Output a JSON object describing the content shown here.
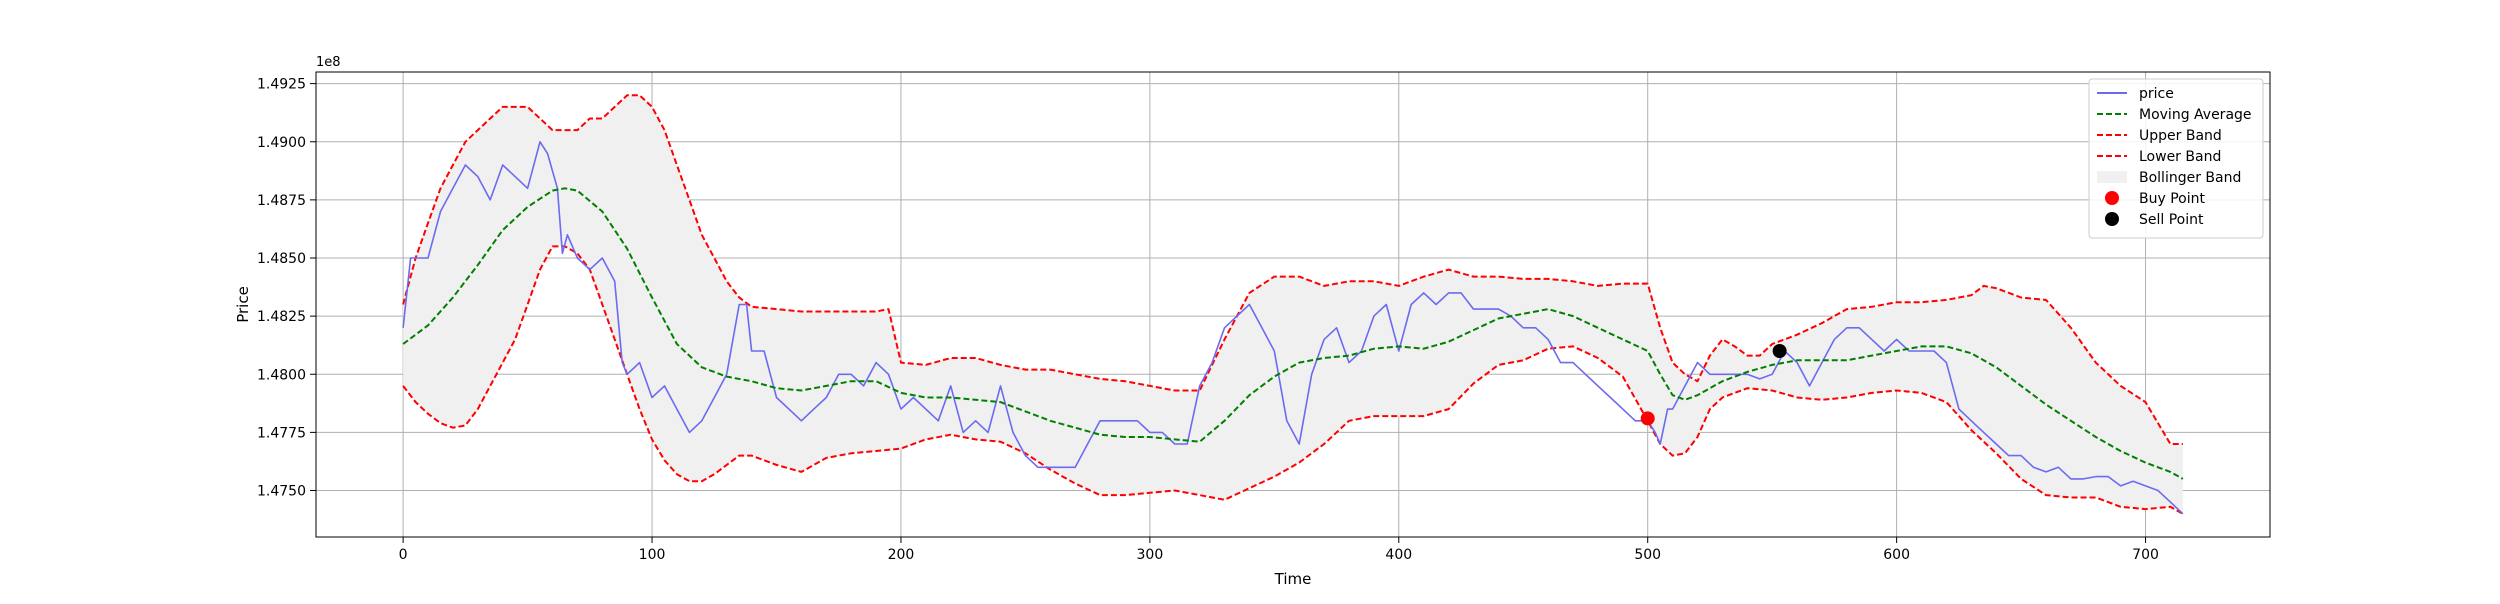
{
  "chart_data": {
    "type": "line",
    "title": "",
    "xlabel": "Time",
    "ylabel": "Price",
    "y_offset_text": "1e8",
    "xlim": [
      -35,
      750
    ],
    "ylim": [
      147300000,
      149300000
    ],
    "xticks": [
      0,
      100,
      200,
      300,
      400,
      500,
      600,
      700
    ],
    "yticks": [
      147500000,
      147750000,
      148000000,
      148250000,
      148500000,
      148750000,
      149000000,
      149250000
    ],
    "ytick_labels": [
      "1.4750",
      "1.4775",
      "1.4800",
      "1.4825",
      "1.4850",
      "1.4875",
      "1.4900",
      "1.4925"
    ],
    "grid": true,
    "legend_position": "top-right",
    "legend": [
      "price",
      "Moving Average",
      "Upper Band",
      "Lower Band",
      "Bollinger Band",
      "Buy Point",
      "Sell Point"
    ],
    "colors": {
      "price": "#6b6bf0",
      "moving_average": "#008000",
      "bands": "#ff0000",
      "fill": "#f0f0f0",
      "buy": "#ff0000",
      "sell": "#000000"
    },
    "series": [
      {
        "name": "price",
        "x": [
          0,
          3,
          10,
          15,
          20,
          25,
          30,
          35,
          40,
          45,
          50,
          55,
          58,
          62,
          64,
          66,
          70,
          75,
          80,
          85,
          88,
          90,
          95,
          100,
          105,
          110,
          115,
          120,
          125,
          130,
          135,
          138,
          140,
          145,
          150,
          155,
          160,
          165,
          170,
          175,
          180,
          185,
          190,
          195,
          200,
          205,
          210,
          215,
          220,
          225,
          230,
          235,
          240,
          245,
          250,
          255,
          260,
          265,
          270,
          275,
          280,
          285,
          290,
          295,
          300,
          305,
          310,
          315,
          320,
          325,
          330,
          335,
          340,
          345,
          350,
          355,
          360,
          365,
          370,
          375,
          380,
          385,
          390,
          395,
          400,
          405,
          410,
          415,
          420,
          425,
          430,
          435,
          440,
          445,
          450,
          455,
          460,
          465,
          470,
          475,
          480,
          485,
          490,
          495,
          500,
          503,
          505,
          508,
          510,
          515,
          520,
          525,
          530,
          535,
          540,
          545,
          550,
          555,
          560,
          565,
          570,
          575,
          580,
          585,
          590,
          595,
          600,
          605,
          610,
          615,
          620,
          625,
          630,
          635,
          640,
          645,
          650,
          655,
          660,
          665,
          670,
          675,
          680,
          685,
          690,
          695,
          700,
          705,
          710,
          715
        ],
        "values": [
          148200000,
          148500000,
          148500000,
          148700000,
          148800000,
          148900000,
          148850000,
          148750000,
          148900000,
          148850000,
          148800000,
          149000000,
          148950000,
          148800000,
          148520000,
          148600000,
          148500000,
          148450000,
          148500000,
          148400000,
          148050000,
          148000000,
          148050000,
          147900000,
          147950000,
          147850000,
          147750000,
          147800000,
          147900000,
          148000000,
          148300000,
          148300000,
          148100000,
          148100000,
          147900000,
          147850000,
          147800000,
          147850000,
          147900000,
          148000000,
          148000000,
          147950000,
          148050000,
          148000000,
          147850000,
          147900000,
          147850000,
          147800000,
          147950000,
          147750000,
          147800000,
          147750000,
          147950000,
          147750000,
          147650000,
          147600000,
          147600000,
          147600000,
          147600000,
          147700000,
          147800000,
          147800000,
          147800000,
          147800000,
          147750000,
          147750000,
          147700000,
          147700000,
          147950000,
          148050000,
          148200000,
          148250000,
          148300000,
          148200000,
          148100000,
          147800000,
          147700000,
          148000000,
          148150000,
          148200000,
          148050000,
          148100000,
          148250000,
          148300000,
          148100000,
          148300000,
          148350000,
          148300000,
          148350000,
          148350000,
          148280000,
          148280000,
          148280000,
          148250000,
          148200000,
          148200000,
          148150000,
          148050000,
          148050000,
          148000000,
          147950000,
          147900000,
          147850000,
          147800000,
          147800000,
          147750000,
          147700000,
          147850000,
          147850000,
          147950000,
          148050000,
          148000000,
          148000000,
          148000000,
          148000000,
          147980000,
          148000000,
          148100000,
          148050000,
          147950000,
          148050000,
          148150000,
          148200000,
          148200000,
          148150000,
          148100000,
          148150000,
          148100000,
          148100000,
          148100000,
          148050000,
          147850000,
          147800000,
          147750000,
          147700000,
          147650000,
          147650000,
          147600000,
          147580000,
          147600000,
          147550000,
          147550000,
          147560000,
          147560000,
          147520000,
          147540000,
          147520000,
          147500000,
          147450000,
          147400000
        ]
      },
      {
        "name": "Moving Average",
        "x": [
          0,
          10,
          20,
          30,
          40,
          50,
          60,
          65,
          70,
          80,
          90,
          100,
          110,
          120,
          130,
          140,
          150,
          160,
          170,
          180,
          190,
          200,
          210,
          220,
          230,
          240,
          250,
          260,
          270,
          280,
          290,
          300,
          310,
          320,
          330,
          340,
          350,
          360,
          370,
          380,
          390,
          400,
          410,
          420,
          430,
          440,
          450,
          460,
          470,
          480,
          490,
          500,
          505,
          510,
          515,
          520,
          530,
          540,
          550,
          560,
          570,
          580,
          590,
          600,
          610,
          620,
          630,
          640,
          650,
          660,
          670,
          680,
          690,
          700,
          710,
          715
        ],
        "values": [
          148130000,
          148210000,
          148330000,
          148470000,
          148620000,
          148720000,
          148790000,
          148800000,
          148790000,
          148700000,
          148540000,
          148330000,
          148130000,
          148030000,
          147990000,
          147970000,
          147940000,
          147930000,
          147950000,
          147970000,
          147970000,
          147920000,
          147900000,
          147900000,
          147890000,
          147880000,
          147840000,
          147800000,
          147770000,
          147740000,
          147730000,
          147730000,
          147720000,
          147710000,
          147800000,
          147910000,
          147990000,
          148050000,
          148070000,
          148080000,
          148110000,
          148120000,
          148110000,
          148140000,
          148190000,
          148240000,
          148260000,
          148280000,
          148250000,
          148200000,
          148150000,
          148100000,
          148000000,
          147910000,
          147890000,
          147910000,
          147970000,
          148010000,
          148040000,
          148060000,
          148060000,
          148060000,
          148080000,
          148100000,
          148120000,
          148120000,
          148090000,
          148030000,
          147950000,
          147870000,
          147800000,
          147730000,
          147670000,
          147620000,
          147580000,
          147550000
        ]
      },
      {
        "name": "Upper Band",
        "x": [
          0,
          5,
          10,
          15,
          20,
          25,
          30,
          35,
          40,
          45,
          50,
          55,
          60,
          65,
          70,
          75,
          80,
          85,
          90,
          95,
          100,
          105,
          110,
          115,
          120,
          125,
          130,
          135,
          140,
          150,
          160,
          170,
          180,
          190,
          195,
          200,
          210,
          220,
          230,
          240,
          250,
          260,
          270,
          280,
          290,
          300,
          310,
          320,
          330,
          340,
          350,
          360,
          370,
          380,
          390,
          400,
          410,
          420,
          430,
          440,
          450,
          460,
          470,
          480,
          490,
          500,
          505,
          510,
          515,
          520,
          525,
          530,
          535,
          540,
          545,
          550,
          560,
          570,
          580,
          590,
          600,
          610,
          620,
          630,
          635,
          640,
          650,
          660,
          670,
          680,
          690,
          700,
          710,
          715
        ],
        "values": [
          148300000,
          148500000,
          148650000,
          148800000,
          148900000,
          149000000,
          149050000,
          149100000,
          149150000,
          149150000,
          149150000,
          149100000,
          149050000,
          149050000,
          149050000,
          149100000,
          149100000,
          149150000,
          149200000,
          149200000,
          149150000,
          149050000,
          148900000,
          148750000,
          148600000,
          148500000,
          148400000,
          148330000,
          148290000,
          148280000,
          148270000,
          148270000,
          148270000,
          148270000,
          148280000,
          148050000,
          148040000,
          148070000,
          148070000,
          148040000,
          148020000,
          148020000,
          148000000,
          147980000,
          147970000,
          147950000,
          147930000,
          147930000,
          148150000,
          148350000,
          148420000,
          148420000,
          148380000,
          148400000,
          148400000,
          148380000,
          148420000,
          148450000,
          148420000,
          148420000,
          148410000,
          148410000,
          148400000,
          148380000,
          148390000,
          148390000,
          148200000,
          148050000,
          148000000,
          147970000,
          148080000,
          148150000,
          148120000,
          148080000,
          148080000,
          148130000,
          148170000,
          148220000,
          148280000,
          148290000,
          148310000,
          148310000,
          148320000,
          148340000,
          148380000,
          148370000,
          148330000,
          148320000,
          148200000,
          148050000,
          147950000,
          147880000,
          147700000,
          147700000
        ]
      },
      {
        "name": "Lower Band",
        "x": [
          0,
          5,
          10,
          15,
          20,
          25,
          30,
          35,
          40,
          45,
          50,
          55,
          60,
          65,
          70,
          75,
          80,
          85,
          90,
          95,
          100,
          105,
          110,
          115,
          120,
          125,
          130,
          135,
          140,
          145,
          150,
          160,
          170,
          180,
          190,
          200,
          210,
          220,
          230,
          240,
          250,
          260,
          270,
          280,
          290,
          300,
          310,
          320,
          330,
          340,
          350,
          360,
          370,
          375,
          380,
          390,
          400,
          410,
          420,
          430,
          440,
          450,
          460,
          470,
          480,
          490,
          500,
          505,
          510,
          515,
          520,
          525,
          530,
          540,
          550,
          560,
          570,
          580,
          590,
          600,
          610,
          620,
          630,
          640,
          650,
          660,
          670,
          680,
          690,
          700,
          710,
          715
        ],
        "values": [
          147950000,
          147880000,
          147830000,
          147790000,
          147770000,
          147780000,
          147850000,
          147950000,
          148050000,
          148150000,
          148300000,
          148450000,
          148550000,
          148550000,
          148520000,
          148450000,
          148300000,
          148150000,
          148000000,
          147850000,
          147720000,
          147630000,
          147570000,
          147540000,
          147540000,
          147570000,
          147610000,
          147650000,
          147650000,
          147630000,
          147610000,
          147580000,
          147640000,
          147660000,
          147670000,
          147680000,
          147720000,
          147740000,
          147720000,
          147710000,
          147660000,
          147590000,
          147530000,
          147480000,
          147480000,
          147490000,
          147500000,
          147480000,
          147460000,
          147510000,
          147560000,
          147620000,
          147700000,
          147750000,
          147800000,
          147820000,
          147820000,
          147820000,
          147850000,
          147960000,
          148040000,
          148060000,
          148110000,
          148120000,
          148070000,
          147990000,
          147800000,
          147700000,
          147650000,
          147660000,
          147730000,
          147850000,
          147900000,
          147940000,
          147930000,
          147900000,
          147890000,
          147900000,
          147920000,
          147930000,
          147920000,
          147880000,
          147760000,
          147660000,
          147550000,
          147480000,
          147470000,
          147470000,
          147430000,
          147420000,
          147430000,
          147400000
        ]
      }
    ],
    "markers": [
      {
        "name": "Buy Point",
        "x": 500,
        "y": 147810000
      },
      {
        "name": "Sell Point",
        "x": 553,
        "y": 148100000
      }
    ]
  }
}
